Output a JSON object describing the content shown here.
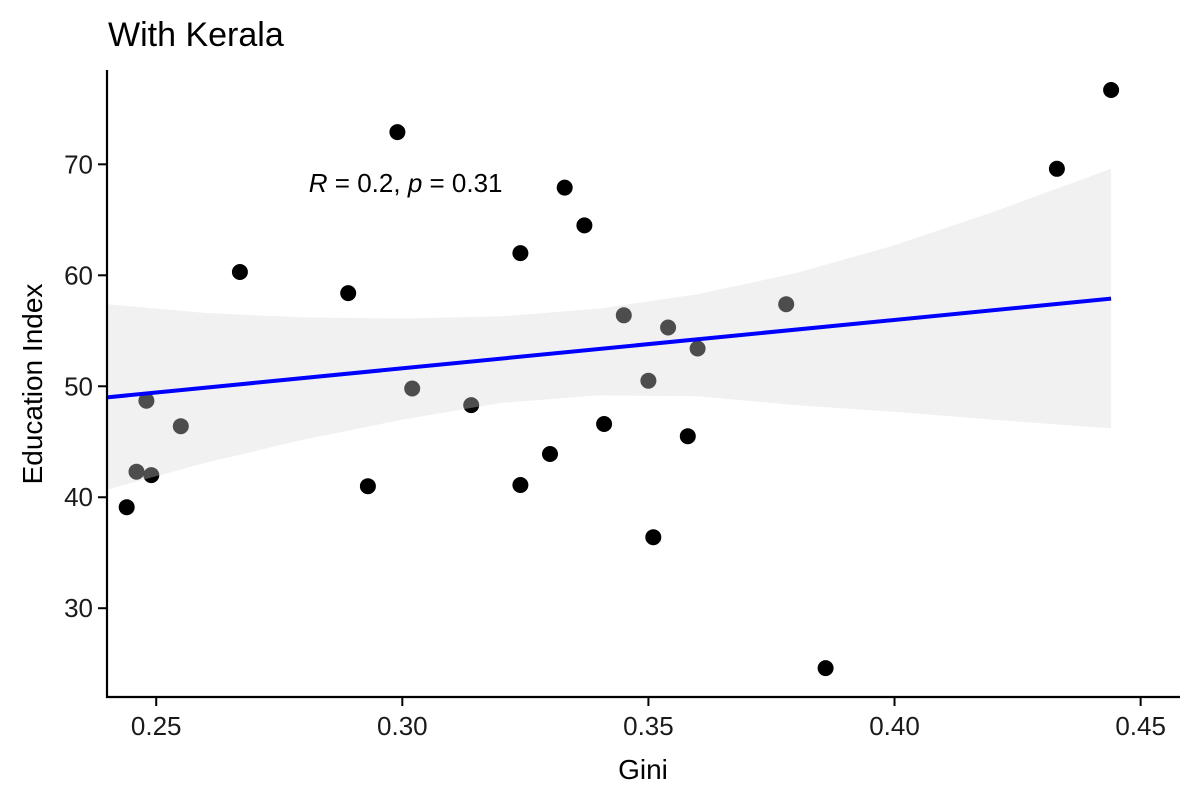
{
  "chart_data": {
    "type": "scatter",
    "title": "With Kerala",
    "xlabel": "Gini",
    "ylabel": "Education Index",
    "xlim": [
      0.24,
      0.458
    ],
    "ylim": [
      22,
      78.5
    ],
    "x_ticks": [
      0.25,
      0.3,
      0.35,
      0.4,
      0.45
    ],
    "x_tick_labels": [
      "0.25",
      "0.30",
      "0.35",
      "0.40",
      "0.45"
    ],
    "y_ticks": [
      30,
      40,
      50,
      60,
      70
    ],
    "y_tick_labels": [
      "30",
      "40",
      "50",
      "60",
      "70"
    ],
    "grid": false,
    "annotation": {
      "r_symbol": "R",
      "r_text": " = 0.2, ",
      "p_symbol": "p",
      "p_text": " = 0.31",
      "x": 0.281,
      "y": 68.3
    },
    "regression": {
      "color": "#0000ff",
      "line": [
        [
          0.24,
          49.0
        ],
        [
          0.444,
          57.9
        ]
      ],
      "band_upper": [
        [
          0.24,
          57.4
        ],
        [
          0.26,
          56.6
        ],
        [
          0.28,
          56.2
        ],
        [
          0.3,
          56.1
        ],
        [
          0.32,
          56.3
        ],
        [
          0.34,
          57.0
        ],
        [
          0.36,
          58.3
        ],
        [
          0.38,
          60.2
        ],
        [
          0.4,
          62.7
        ],
        [
          0.42,
          65.7
        ],
        [
          0.444,
          69.6
        ]
      ],
      "band_lower": [
        [
          0.24,
          40.7
        ],
        [
          0.26,
          43.1
        ],
        [
          0.28,
          45.2
        ],
        [
          0.3,
          47.0
        ],
        [
          0.32,
          48.5
        ],
        [
          0.34,
          49.2
        ],
        [
          0.36,
          49.1
        ],
        [
          0.38,
          48.3
        ],
        [
          0.4,
          47.7
        ],
        [
          0.42,
          47.0
        ],
        [
          0.444,
          46.2
        ]
      ],
      "band_color": "#ebebeb"
    },
    "point_color": "#000000",
    "points": [
      {
        "x": 0.244,
        "y": 39.1
      },
      {
        "x": 0.246,
        "y": 42.3
      },
      {
        "x": 0.248,
        "y": 48.7
      },
      {
        "x": 0.249,
        "y": 42.0
      },
      {
        "x": 0.255,
        "y": 46.4
      },
      {
        "x": 0.267,
        "y": 60.3
      },
      {
        "x": 0.289,
        "y": 58.4
      },
      {
        "x": 0.293,
        "y": 41.0
      },
      {
        "x": 0.299,
        "y": 72.9
      },
      {
        "x": 0.302,
        "y": 49.8
      },
      {
        "x": 0.314,
        "y": 48.3
      },
      {
        "x": 0.324,
        "y": 62.0
      },
      {
        "x": 0.324,
        "y": 41.1
      },
      {
        "x": 0.33,
        "y": 43.9
      },
      {
        "x": 0.333,
        "y": 67.9
      },
      {
        "x": 0.337,
        "y": 64.5
      },
      {
        "x": 0.341,
        "y": 46.6
      },
      {
        "x": 0.345,
        "y": 56.4
      },
      {
        "x": 0.35,
        "y": 50.5
      },
      {
        "x": 0.351,
        "y": 36.4
      },
      {
        "x": 0.354,
        "y": 55.3
      },
      {
        "x": 0.358,
        "y": 45.5
      },
      {
        "x": 0.36,
        "y": 53.4
      },
      {
        "x": 0.378,
        "y": 57.4
      },
      {
        "x": 0.386,
        "y": 24.6
      },
      {
        "x": 0.433,
        "y": 69.6
      },
      {
        "x": 0.444,
        "y": 76.7
      }
    ]
  }
}
